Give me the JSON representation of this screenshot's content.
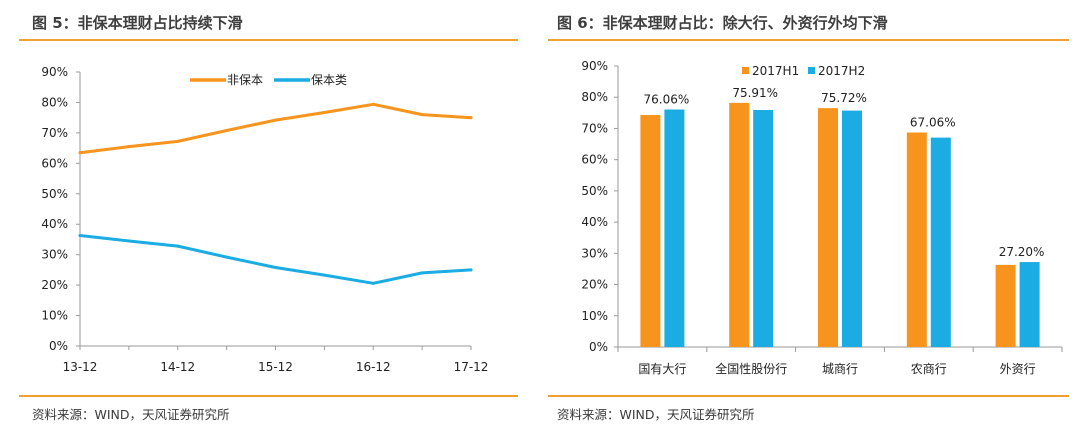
{
  "left_panel": {
    "title": "图 5：非保本理财占比持续下滑",
    "source": "资料来源：WIND，天风证券研究所"
  },
  "right_panel": {
    "title": "图 6：非保本理财占比：除大行、外资行外均下滑",
    "source": "资料来源：WIND，天风证券研究所"
  },
  "colors": {
    "accent_rule": "#f0a030",
    "series_orange": "#f7941d",
    "series_blue": "#1bace3",
    "axis": "#9a9a9a"
  },
  "chart_data": [
    {
      "type": "line",
      "x": [
        "13-12",
        "14-06",
        "14-12",
        "15-06",
        "15-12",
        "16-06",
        "16-12",
        "17-06",
        "17-12"
      ],
      "tick_labels": [
        "13-12",
        "14-12",
        "15-12",
        "16-12",
        "17-12"
      ],
      "series": [
        {
          "name": "非保本",
          "values": [
            63.5,
            65.5,
            67.2,
            70.8,
            74.2,
            76.7,
            79.4,
            76.0,
            75.0
          ]
        },
        {
          "name": "保本类",
          "values": [
            36.3,
            34.5,
            32.8,
            29.2,
            25.8,
            23.3,
            20.6,
            24.0,
            25.0
          ]
        }
      ],
      "ylim": [
        0,
        90
      ],
      "yticks": [
        "0%",
        "10%",
        "20%",
        "30%",
        "40%",
        "50%",
        "60%",
        "70%",
        "80%",
        "90%"
      ],
      "legend_position": "top-center",
      "grid": false
    },
    {
      "type": "bar",
      "categories": [
        "国有大行",
        "全国性股份行",
        "城商行",
        "农商行",
        "外资行"
      ],
      "series": [
        {
          "name": "2017H1",
          "values": [
            74.3,
            78.2,
            76.5,
            68.7,
            26.3
          ]
        },
        {
          "name": "2017H2",
          "values": [
            76.06,
            75.91,
            75.72,
            67.06,
            27.2
          ]
        }
      ],
      "data_labels": [
        "76.06%",
        "75.91%",
        "75.72%",
        "67.06%",
        "27.20%"
      ],
      "ylim": [
        0,
        90
      ],
      "yticks": [
        "0%",
        "10%",
        "20%",
        "30%",
        "40%",
        "50%",
        "60%",
        "70%",
        "80%",
        "90%"
      ],
      "legend_position": "top-center",
      "grid": false
    }
  ]
}
